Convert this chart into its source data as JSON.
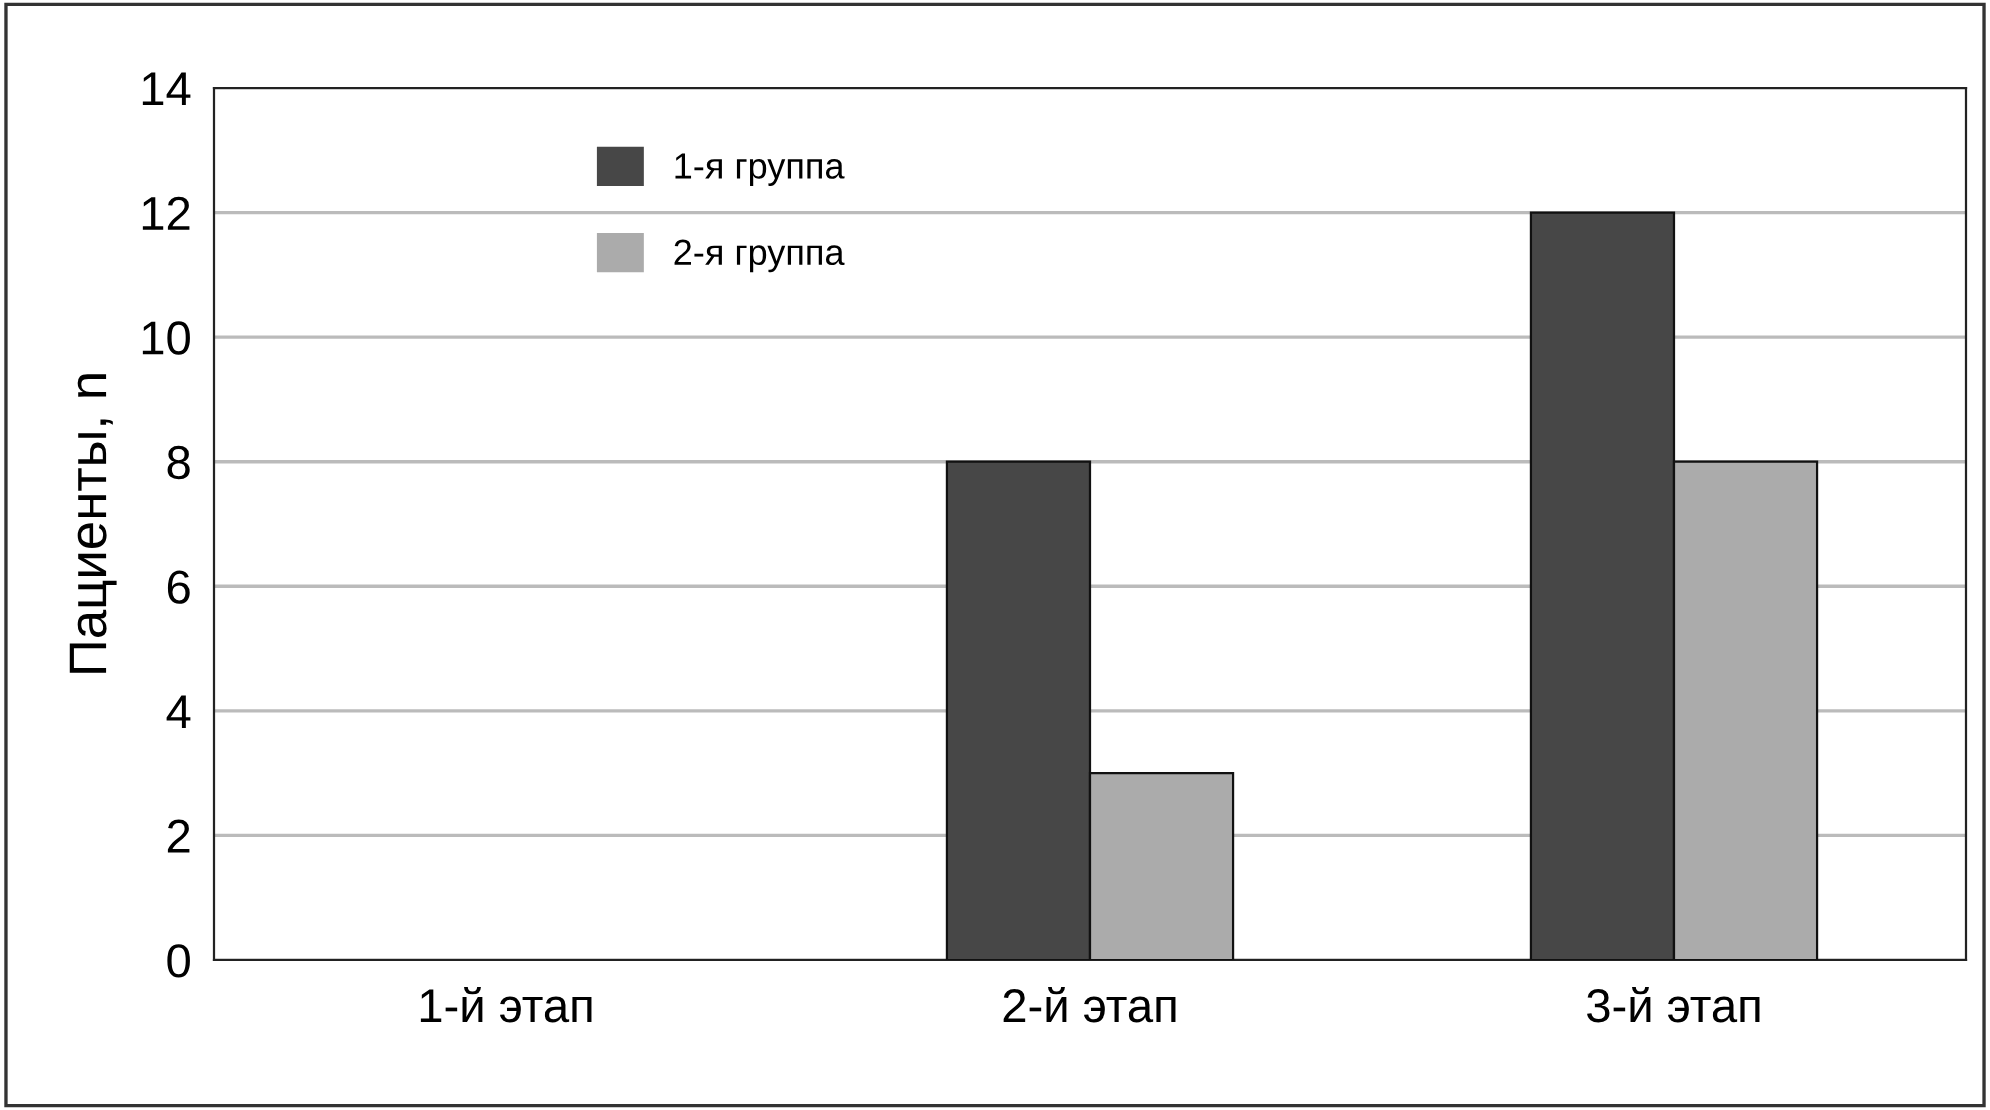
{
  "chart_data": {
    "type": "bar",
    "ylabel": "Пациенты, n",
    "categories": [
      "1-й этап",
      "2-й этап",
      "3-й этап"
    ],
    "series": [
      {
        "name": "1-я группа",
        "color": "#474747",
        "values": [
          0,
          8,
          12
        ]
      },
      {
        "name": "2-я группа",
        "color": "#ababab",
        "values": [
          0,
          3,
          8
        ]
      }
    ],
    "ylim": [
      0,
      14
    ],
    "yticks": [
      0,
      2,
      4,
      6,
      8,
      10,
      12,
      14
    ],
    "grid": "y",
    "legend": "top left"
  }
}
